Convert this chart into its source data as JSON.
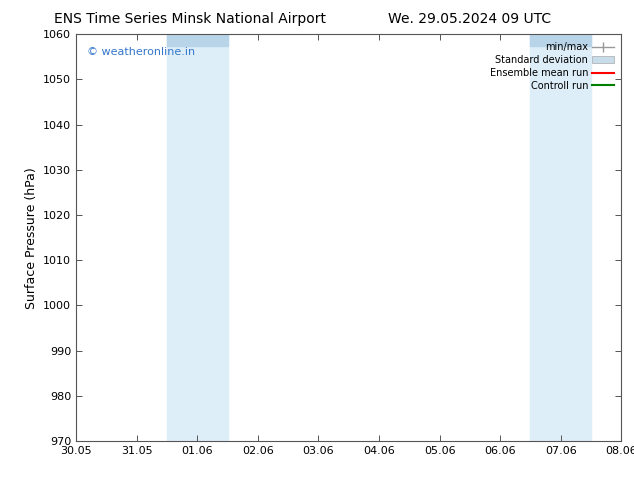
{
  "title_left": "ENS Time Series Minsk National Airport",
  "title_right": "We. 29.05.2024 09 UTC",
  "ylabel": "Surface Pressure (hPa)",
  "ylim": [
    970,
    1060
  ],
  "yticks": [
    970,
    980,
    990,
    1000,
    1010,
    1020,
    1030,
    1040,
    1050,
    1060
  ],
  "xtick_labels": [
    "30.05",
    "31.05",
    "01.06",
    "02.06",
    "03.06",
    "04.06",
    "05.06",
    "06.06",
    "07.06",
    "08.06"
  ],
  "xtick_positions": [
    0,
    1,
    2,
    3,
    4,
    5,
    6,
    7,
    8,
    9
  ],
  "shade_bands": [
    {
      "xmin": 1.5,
      "xmax": 2.5,
      "color": "#deeef8"
    },
    {
      "xmin": 7.5,
      "xmax": 8.5,
      "color": "#deeef8"
    }
  ],
  "top_bar_bands": [
    {
      "xmin": 1.5,
      "xmax": 2.5
    },
    {
      "xmin": 7.5,
      "xmax": 8.5
    }
  ],
  "watermark": "© weatheronline.in",
  "watermark_color": "#3377cc",
  "legend_items": [
    {
      "label": "min/max",
      "color": "#999999"
    },
    {
      "label": "Standard deviation",
      "color": "#c8dcea"
    },
    {
      "label": "Ensemble mean run",
      "color": "red"
    },
    {
      "label": "Controll run",
      "color": "green"
    }
  ],
  "background_color": "#ffffff",
  "top_bar_color": "#b8d4e8",
  "spine_color": "#555555",
  "tick_color": "#555555",
  "label_fontsize": 8,
  "title_fontsize": 10
}
